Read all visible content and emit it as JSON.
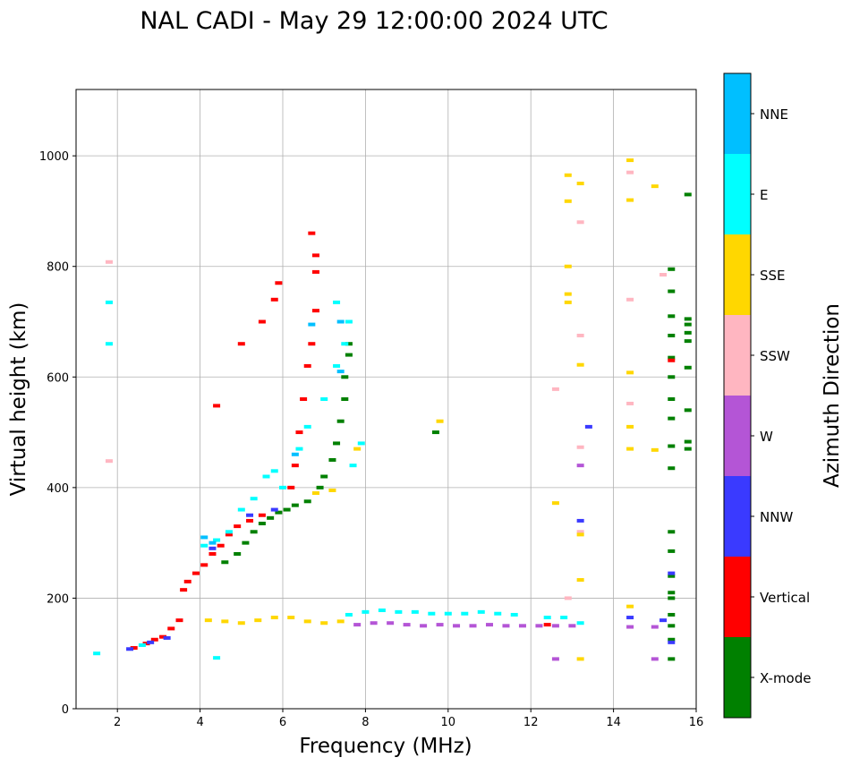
{
  "chart_data": {
    "type": "scatter",
    "title": "NAL CADI - May 29 12:00:00 2024 UTC",
    "xlabel": "Frequency (MHz)",
    "ylabel": "Virtual height (km)",
    "xlim": [
      1,
      16
    ],
    "ylim": [
      0,
      1120
    ],
    "xticks": [
      2,
      4,
      6,
      8,
      10,
      12,
      14,
      16
    ],
    "yticks": [
      0,
      200,
      400,
      600,
      800,
      1000
    ],
    "grid": true,
    "colorbar": {
      "label": "Azimuth Direction",
      "categories": [
        {
          "name": "X-mode",
          "color": "#008000"
        },
        {
          "name": "Vertical",
          "color": "#ff0000"
        },
        {
          "name": "NNW",
          "color": "#3a3aff"
        },
        {
          "name": "W",
          "color": "#b455d6"
        },
        {
          "name": "SSW",
          "color": "#ffb6c1"
        },
        {
          "name": "SSE",
          "color": "#ffd700"
        },
        {
          "name": "E",
          "color": "#00ffff"
        },
        {
          "name": "NNE",
          "color": "#00bfff"
        }
      ]
    },
    "series": [
      {
        "name": "X-mode",
        "points": [
          [
            4.6,
            265
          ],
          [
            4.9,
            280
          ],
          [
            5.1,
            300
          ],
          [
            5.3,
            320
          ],
          [
            5.5,
            335
          ],
          [
            5.7,
            345
          ],
          [
            5.9,
            355
          ],
          [
            6.1,
            360
          ],
          [
            6.3,
            368
          ],
          [
            6.6,
            375
          ],
          [
            6.9,
            400
          ],
          [
            7.0,
            420
          ],
          [
            7.2,
            450
          ],
          [
            7.3,
            480
          ],
          [
            7.4,
            520
          ],
          [
            7.5,
            560
          ],
          [
            7.5,
            600
          ],
          [
            7.6,
            640
          ],
          [
            7.6,
            660
          ],
          [
            9.7,
            500
          ],
          [
            15.4,
            90
          ],
          [
            15.4,
            125
          ],
          [
            15.4,
            150
          ],
          [
            15.4,
            170
          ],
          [
            15.4,
            200
          ],
          [
            15.4,
            210
          ],
          [
            15.4,
            240
          ],
          [
            15.4,
            285
          ],
          [
            15.4,
            320
          ],
          [
            15.4,
            435
          ],
          [
            15.4,
            475
          ],
          [
            15.4,
            525
          ],
          [
            15.4,
            560
          ],
          [
            15.4,
            600
          ],
          [
            15.4,
            635
          ],
          [
            15.4,
            675
          ],
          [
            15.4,
            710
          ],
          [
            15.4,
            755
          ],
          [
            15.4,
            795
          ],
          [
            15.8,
            470
          ],
          [
            15.8,
            483
          ],
          [
            15.8,
            540
          ],
          [
            15.8,
            617
          ],
          [
            15.8,
            665
          ],
          [
            15.8,
            680
          ],
          [
            15.8,
            695
          ],
          [
            15.8,
            705
          ],
          [
            15.8,
            930
          ]
        ]
      },
      {
        "name": "Vertical",
        "points": [
          [
            2.4,
            110
          ],
          [
            2.7,
            118
          ],
          [
            2.9,
            125
          ],
          [
            3.1,
            130
          ],
          [
            3.3,
            145
          ],
          [
            3.5,
            160
          ],
          [
            3.6,
            215
          ],
          [
            3.7,
            230
          ],
          [
            3.9,
            245
          ],
          [
            4.1,
            260
          ],
          [
            4.3,
            280
          ],
          [
            4.5,
            295
          ],
          [
            4.7,
            315
          ],
          [
            4.9,
            330
          ],
          [
            5.2,
            340
          ],
          [
            5.5,
            350
          ],
          [
            4.4,
            548
          ],
          [
            5.0,
            660
          ],
          [
            5.5,
            700
          ],
          [
            5.8,
            740
          ],
          [
            5.9,
            770
          ],
          [
            6.2,
            400
          ],
          [
            6.3,
            440
          ],
          [
            6.4,
            500
          ],
          [
            6.5,
            560
          ],
          [
            6.6,
            620
          ],
          [
            6.7,
            660
          ],
          [
            6.8,
            720
          ],
          [
            6.8,
            790
          ],
          [
            6.8,
            820
          ],
          [
            6.7,
            860
          ],
          [
            12.4,
            152
          ],
          [
            15.4,
            630
          ]
        ]
      },
      {
        "name": "NNW",
        "points": [
          [
            2.3,
            108
          ],
          [
            2.8,
            120
          ],
          [
            3.2,
            128
          ],
          [
            4.3,
            290
          ],
          [
            5.2,
            350
          ],
          [
            5.8,
            360
          ],
          [
            13.2,
            340
          ],
          [
            13.4,
            510
          ],
          [
            14.4,
            165
          ],
          [
            15.2,
            160
          ],
          [
            15.4,
            120
          ],
          [
            15.4,
            245
          ]
        ]
      },
      {
        "name": "W",
        "points": [
          [
            7.8,
            152
          ],
          [
            8.2,
            155
          ],
          [
            8.6,
            155
          ],
          [
            9.0,
            152
          ],
          [
            9.4,
            150
          ],
          [
            9.8,
            152
          ],
          [
            10.2,
            150
          ],
          [
            10.6,
            150
          ],
          [
            11.0,
            152
          ],
          [
            11.4,
            150
          ],
          [
            11.8,
            150
          ],
          [
            12.2,
            150
          ],
          [
            12.6,
            150
          ],
          [
            13.0,
            150
          ],
          [
            12.6,
            90
          ],
          [
            13.2,
            440
          ],
          [
            14.4,
            148
          ],
          [
            15.0,
            90
          ],
          [
            15.0,
            148
          ]
        ]
      },
      {
        "name": "SSW",
        "points": [
          [
            1.8,
            808
          ],
          [
            1.8,
            448
          ],
          [
            12.6,
            578
          ],
          [
            12.9,
            200
          ],
          [
            13.2,
            880
          ],
          [
            13.2,
            675
          ],
          [
            13.2,
            473
          ],
          [
            13.2,
            320
          ],
          [
            14.4,
            970
          ],
          [
            14.4,
            740
          ],
          [
            14.4,
            552
          ],
          [
            15.2,
            785
          ]
        ]
      },
      {
        "name": "SSE",
        "points": [
          [
            4.2,
            160
          ],
          [
            4.6,
            158
          ],
          [
            5.0,
            155
          ],
          [
            5.4,
            160
          ],
          [
            5.8,
            165
          ],
          [
            6.2,
            165
          ],
          [
            6.6,
            158
          ],
          [
            7.0,
            155
          ],
          [
            7.4,
            158
          ],
          [
            6.8,
            390
          ],
          [
            7.2,
            395
          ],
          [
            7.8,
            470
          ],
          [
            9.8,
            520
          ],
          [
            12.6,
            372
          ],
          [
            12.9,
            965
          ],
          [
            12.9,
            918
          ],
          [
            12.9,
            800
          ],
          [
            12.9,
            750
          ],
          [
            12.9,
            735
          ],
          [
            13.2,
            950
          ],
          [
            13.2,
            622
          ],
          [
            13.2,
            315
          ],
          [
            13.2,
            233
          ],
          [
            13.2,
            90
          ],
          [
            14.4,
            992
          ],
          [
            14.4,
            920
          ],
          [
            14.4,
            608
          ],
          [
            14.4,
            510
          ],
          [
            14.4,
            470
          ],
          [
            14.4,
            185
          ],
          [
            15.0,
            945
          ],
          [
            15.0,
            468
          ]
        ]
      },
      {
        "name": "E",
        "points": [
          [
            1.8,
            735
          ],
          [
            1.8,
            660
          ],
          [
            1.5,
            100
          ],
          [
            2.6,
            115
          ],
          [
            4.1,
            295
          ],
          [
            4.4,
            305
          ],
          [
            4.7,
            320
          ],
          [
            5.0,
            360
          ],
          [
            5.3,
            380
          ],
          [
            5.6,
            420
          ],
          [
            5.8,
            430
          ],
          [
            6.0,
            400
          ],
          [
            6.4,
            470
          ],
          [
            6.6,
            510
          ],
          [
            7.0,
            560
          ],
          [
            7.3,
            620
          ],
          [
            7.5,
            660
          ],
          [
            7.6,
            700
          ],
          [
            7.7,
            440
          ],
          [
            7.9,
            480
          ],
          [
            7.6,
            170
          ],
          [
            8.0,
            175
          ],
          [
            8.4,
            178
          ],
          [
            8.8,
            175
          ],
          [
            9.2,
            175
          ],
          [
            9.6,
            172
          ],
          [
            10.0,
            172
          ],
          [
            10.4,
            172
          ],
          [
            10.8,
            175
          ],
          [
            11.2,
            172
          ],
          [
            11.6,
            170
          ],
          [
            12.4,
            165
          ],
          [
            12.8,
            165
          ],
          [
            13.2,
            155
          ],
          [
            4.4,
            92
          ],
          [
            7.3,
            735
          ]
        ]
      },
      {
        "name": "NNE",
        "points": [
          [
            4.1,
            310
          ],
          [
            4.3,
            300
          ],
          [
            6.7,
            695
          ],
          [
            6.3,
            460
          ],
          [
            7.4,
            610
          ],
          [
            7.4,
            700
          ]
        ]
      }
    ]
  }
}
